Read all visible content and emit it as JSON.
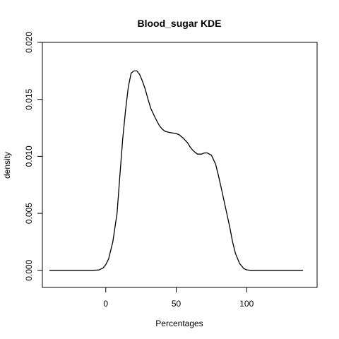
{
  "chart_data": {
    "type": "line",
    "title": "Blood_sugar  KDE",
    "xlabel": "Percentages",
    "ylabel": "density",
    "xlim": [
      -45,
      150
    ],
    "ylim": [
      -0.0015,
      0.02
    ],
    "x_ticks": [
      {
        "value": 0,
        "label": "0"
      },
      {
        "value": 50,
        "label": "50"
      },
      {
        "value": 100,
        "label": "100"
      }
    ],
    "y_ticks": [
      {
        "value": 0.0,
        "label": "0.000"
      },
      {
        "value": 0.005,
        "label": "0.005"
      },
      {
        "value": 0.01,
        "label": "0.010"
      },
      {
        "value": 0.015,
        "label": "0.015"
      },
      {
        "value": 0.02,
        "label": "0.020"
      }
    ],
    "grid": false,
    "series": [
      {
        "color": "#000000",
        "x": [
          -40,
          -10,
          -5,
          -2,
          0,
          2,
          5,
          8,
          10,
          12,
          14,
          16,
          18,
          20,
          22,
          24,
          26,
          28,
          30,
          32,
          35,
          38,
          40,
          42,
          45,
          50,
          52,
          55,
          58,
          60,
          62,
          65,
          68,
          70,
          72,
          75,
          78,
          80,
          82,
          85,
          88,
          90,
          92,
          95,
          98,
          100,
          103,
          110,
          140
        ],
        "y": [
          0.0,
          0.0,
          3e-05,
          0.0002,
          0.0005,
          0.001,
          0.0025,
          0.005,
          0.0083,
          0.0115,
          0.014,
          0.0161,
          0.0173,
          0.0175,
          0.0175,
          0.0172,
          0.0166,
          0.0159,
          0.015,
          0.0142,
          0.0134,
          0.0127,
          0.0124,
          0.0122,
          0.0121,
          0.012,
          0.0119,
          0.0116,
          0.0112,
          0.0108,
          0.0105,
          0.0102,
          0.0102,
          0.0103,
          0.0103,
          0.0101,
          0.0093,
          0.0083,
          0.0072,
          0.0055,
          0.0038,
          0.0025,
          0.0015,
          0.0006,
          0.00015,
          4e-05,
          0.0,
          0.0,
          0.0
        ]
      }
    ]
  }
}
